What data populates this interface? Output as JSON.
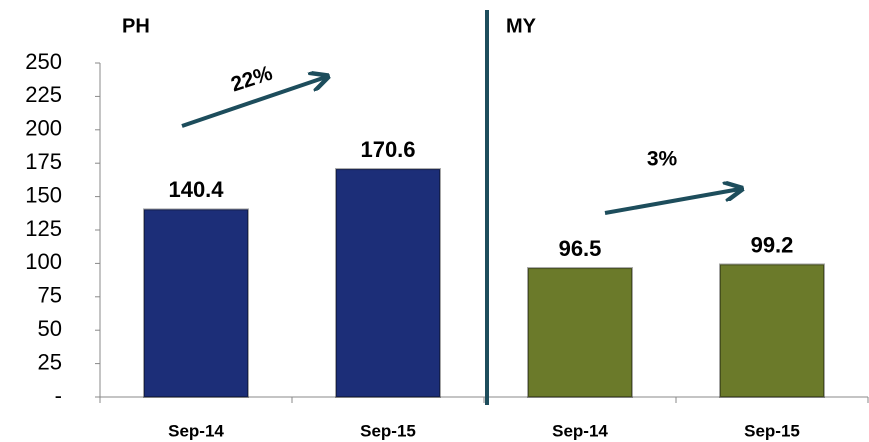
{
  "chart_data": {
    "type": "bar",
    "categories": [
      "Sep-14",
      "Sep-15",
      "Sep-14",
      "Sep-15"
    ],
    "series": [
      {
        "name": "PH",
        "color": "#1c2e78",
        "values": [
          140.4,
          170.6,
          null,
          null
        ]
      },
      {
        "name": "MY",
        "color": "#6b7a2a",
        "values": [
          null,
          null,
          96.5,
          99.2
        ]
      }
    ],
    "annotations": [
      {
        "text": "22%"
      },
      {
        "text": "3%"
      }
    ],
    "ylim": [
      0,
      250
    ],
    "yticks": [
      {
        "value": 0,
        "label": "-"
      },
      25,
      50,
      75,
      100,
      125,
      150,
      175,
      200,
      225,
      250
    ],
    "grid": false
  }
}
